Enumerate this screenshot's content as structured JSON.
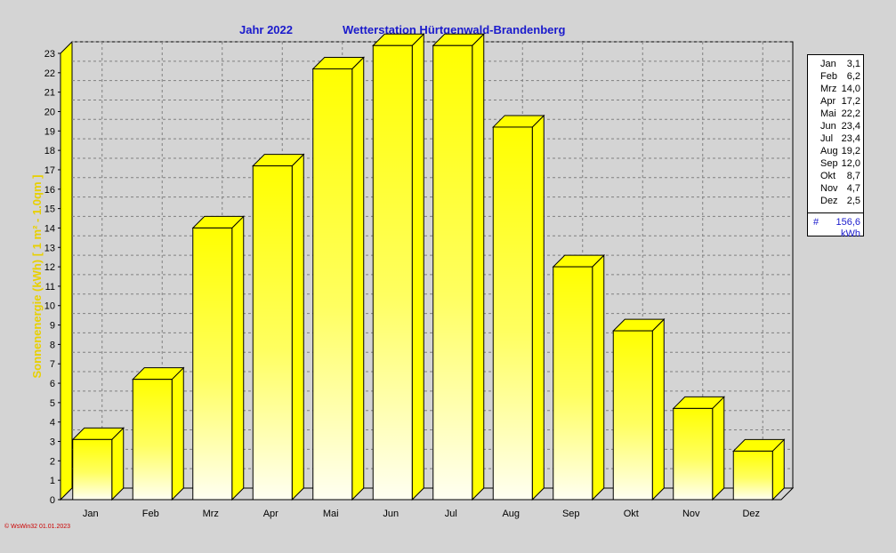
{
  "header": {
    "year_label": "Jahr  2022",
    "station_label": "Wetterstation Hürtgenwald-Brandenberg"
  },
  "chart_data": {
    "type": "bar",
    "categories": [
      "Jan",
      "Feb",
      "Mrz",
      "Apr",
      "Mai",
      "Jun",
      "Jul",
      "Aug",
      "Sep",
      "Okt",
      "Nov",
      "Dez"
    ],
    "values": [
      3.1,
      6.2,
      14.0,
      17.2,
      22.2,
      23.4,
      23.4,
      19.2,
      12.0,
      8.7,
      4.7,
      2.5
    ],
    "ylabel": "Sonnenenergie (kWh)   [ 1 m² - 1.0qm ]",
    "ylim": [
      0,
      23
    ],
    "yticks": [
      0,
      1,
      2,
      3,
      4,
      5,
      6,
      7,
      8,
      9,
      10,
      11,
      12,
      13,
      14,
      15,
      16,
      17,
      18,
      19,
      20,
      21,
      22,
      23
    ],
    "grid": true,
    "legend_placement": "top-right",
    "colors": {
      "bar": "#ffff00",
      "bar_light": "#fffff0",
      "grid": "#808080",
      "axis_label": "#e0c000"
    }
  },
  "legend": {
    "rows": [
      {
        "month": "Jan",
        "value": "3,1"
      },
      {
        "month": "Feb",
        "value": "6,2"
      },
      {
        "month": "Mrz",
        "value": "14,0"
      },
      {
        "month": "Apr",
        "value": "17,2"
      },
      {
        "month": "Mai",
        "value": "22,2"
      },
      {
        "month": "Jun",
        "value": "23,4"
      },
      {
        "month": "Jul",
        "value": "23,4"
      },
      {
        "month": "Aug",
        "value": "19,2"
      },
      {
        "month": "Sep",
        "value": "12,0"
      },
      {
        "month": "Okt",
        "value": "8,7"
      },
      {
        "month": "Nov",
        "value": "4,7"
      },
      {
        "month": "Dez",
        "value": "2,5"
      }
    ],
    "total_symbol": "#",
    "total_value": "156,6",
    "unit": "kWh"
  },
  "footer": {
    "text": "© WsWin32  01.01.2023"
  }
}
